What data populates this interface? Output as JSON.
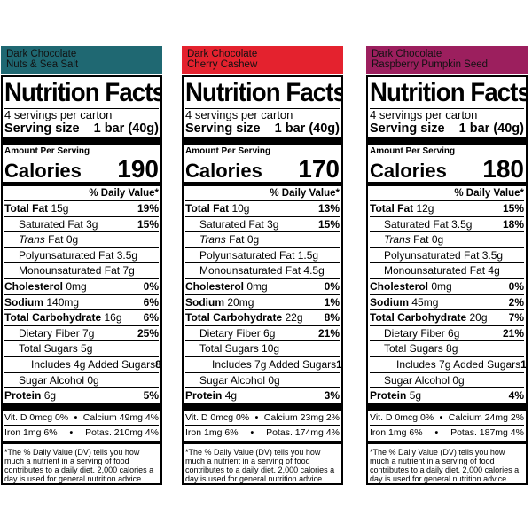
{
  "common": {
    "title": "Nutrition Facts",
    "servings": "4 servings per carton",
    "serving_size_label": "Serving size",
    "serving_size_value": "1 bar (40g)",
    "amount_per_serving": "Amount Per Serving",
    "calories_label": "Calories",
    "dv_header": "% Daily Value*",
    "total_fat": "Total Fat",
    "saturated_fat": "Saturated Fat",
    "trans_fat": "Trans",
    "trans_fat_suffix": "Fat 0g",
    "polyunsaturated_fat": "Polyunsaturated Fat",
    "monounsaturated_fat": "Monounsaturated Fat",
    "cholesterol": "Cholesterol",
    "sodium": "Sodium",
    "total_carb": "Total Carbohydrate",
    "dietary_fiber": "Dietary Fiber",
    "total_sugars": "Total Sugars",
    "includes": "Includes",
    "added_sugars": "Added Sugars",
    "sugar_alcohol": "Sugar Alcohol 0g",
    "protein": "Protein",
    "bullet": "•",
    "footnote": "*The % Daily Value (DV) tells you how much a nutrient in a serving of food contributes to a daily diet. 2,000 calories a day is used for general nutrition advice."
  },
  "panels": [
    {
      "header_line1": "Dark Chocolate",
      "header_line2": "Nuts & Sea Salt",
      "header_color": "#1f6872",
      "calories": "190",
      "total_fat": "15g",
      "total_fat_dv": "19%",
      "sat_fat": "3g",
      "sat_fat_dv": "15%",
      "poly_fat": "3.5g",
      "mono_fat": "7g",
      "cholesterol": "0mg",
      "cholesterol_dv": "0%",
      "sodium": "140mg",
      "sodium_dv": "6%",
      "carb": "16g",
      "carb_dv": "6%",
      "fiber": "7g",
      "fiber_dv": "25%",
      "sugars": "5g",
      "added_sugars": "4g",
      "added_sugars_dv": "8%",
      "protein": "6g",
      "protein_dv": "5%",
      "vit_d": "Vit. D 0mcg 0%",
      "calcium": "Calcium 49mg 4%",
      "iron": "Iron 1mg 6%",
      "potassium": "Potas. 210mg 4%"
    },
    {
      "header_line1": "Dark Chocolate",
      "header_line2": "Cherry Cashew",
      "header_color": "#e4222e",
      "calories": "170",
      "total_fat": "10g",
      "total_fat_dv": "13%",
      "sat_fat": "3g",
      "sat_fat_dv": "15%",
      "poly_fat": "1.5g",
      "mono_fat": "4.5g",
      "cholesterol": "0mg",
      "cholesterol_dv": "0%",
      "sodium": "20mg",
      "sodium_dv": "1%",
      "carb": "22g",
      "carb_dv": "8%",
      "fiber": "6g",
      "fiber_dv": "21%",
      "sugars": "10g",
      "added_sugars": "7g",
      "added_sugars_dv": "14%",
      "protein": "4g",
      "protein_dv": "3%",
      "vit_d": "Vit. D 0mcg 0%",
      "calcium": "Calcium 23mg 2%",
      "iron": "Iron 1mg 6%",
      "potassium": "Potas. 174mg 4%"
    },
    {
      "header_line1": "Dark Chocolate",
      "header_line2": "Raspberry Pumpkin Seed",
      "header_color": "#9c1f5e",
      "calories": "180",
      "total_fat": "12g",
      "total_fat_dv": "15%",
      "sat_fat": "3.5g",
      "sat_fat_dv": "18%",
      "poly_fat": "3.5g",
      "mono_fat": "4g",
      "cholesterol": "0mg",
      "cholesterol_dv": "0%",
      "sodium": "45mg",
      "sodium_dv": "2%",
      "carb": "20g",
      "carb_dv": "7%",
      "fiber": "6g",
      "fiber_dv": "21%",
      "sugars": "8g",
      "added_sugars": "7g",
      "added_sugars_dv": "14%",
      "protein": "5g",
      "protein_dv": "4%",
      "vit_d": "Vit. D 0mcg 0%",
      "calcium": "Calcium 24mg 2%",
      "iron": "Iron 1mg 6%",
      "potassium": "Potas. 187mg 4%"
    }
  ]
}
